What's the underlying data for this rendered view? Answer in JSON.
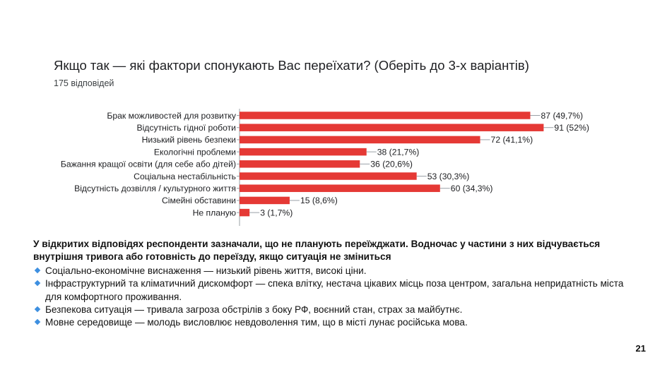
{
  "page": {
    "number": "21"
  },
  "summary": {
    "heading": "У відкритих відповідях респонденти зазначали, що не планують переїжджати. Водночас у частини з них відчувається внутрішня тривога або готовність до переїзду, якщо ситуація не зміниться",
    "bullets": [
      "Соціально-економічне виснаження — низький рівень життя, високі ціни.",
      "Інфраструктурний та кліматичний дискомфорт — спека влітку, нестача цікавих місць поза центром, загальна непридатність міста для комфортного проживання.",
      "Безпекова ситуація — тривала загроза обстрілів з боку РФ, воєнний стан, страх за майбутнє.",
      "Мовне середовище — молодь висловлює невдоволення тим, що в місті лунає російська мова."
    ],
    "bullet_icon": "diamond-bullet-icon",
    "bullet_color": "#3d8fe0"
  },
  "chart_data": {
    "type": "bar",
    "orientation": "horizontal",
    "title": "Якщо так — які фактори спонукають Вас переїхати?  (Оберіть до 3-х варіантів)",
    "subtitle": "175 відповідей",
    "categories": [
      "Брак можливостей для розвитку",
      "Відсутність гідної роботи",
      "Низький рівень безпеки",
      "Екологічні проблеми",
      "Бажання кращої освіти (для себе або дітей)",
      "Соціальна нестабільність",
      "Відсутність дозвілля / культурного життя",
      "Сімейні обставини",
      "Не планую"
    ],
    "values": [
      87,
      91,
      72,
      38,
      36,
      53,
      60,
      15,
      3
    ],
    "data_labels": [
      "87 (49,7%)",
      "91 (52%)",
      "72 (41,1%)",
      "38 (21,7%)",
      "36 (20,6%)",
      "53 (30,3%)",
      "60 (34,3%)",
      "15 (8,6%)",
      "3 (1,7%)"
    ],
    "xlim": [
      0,
      100
    ],
    "bar_color": "#e53935",
    "grid": false,
    "legend": "none"
  }
}
